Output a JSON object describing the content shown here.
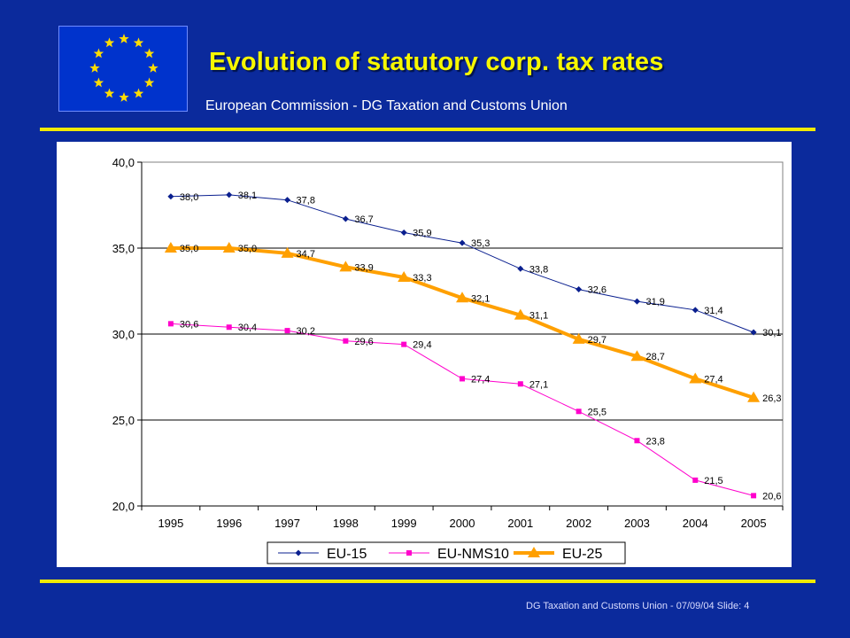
{
  "slide": {
    "title": "Evolution of statutory corp. tax rates",
    "subtitle": "European Commission - DG Taxation and Customs Union",
    "footer": "DG Taxation and Customs Union  - 07/09/04 Slide: 4"
  },
  "colors": {
    "background": "#0b2a9c",
    "title": "#f7f700",
    "rule": "#f2ea00",
    "eu_flag_blue": "#0033cc",
    "eu_flag_stars": "#ffdd00"
  },
  "icons": {
    "logo": "eu-flag-icon"
  },
  "chart_data": {
    "type": "line",
    "title": "",
    "xlabel": "",
    "ylabel": "",
    "categories": [
      "1995",
      "1996",
      "1997",
      "1998",
      "1999",
      "2000",
      "2001",
      "2002",
      "2003",
      "2004",
      "2005"
    ],
    "ylim": [
      20.0,
      40.0
    ],
    "yticks": [
      "40,0",
      "35,0",
      "30,0",
      "25,0",
      "20,0"
    ],
    "grid": "horizontal",
    "legend": "bottom",
    "series": [
      {
        "name": "EU-15",
        "color": "#0a1f8f",
        "marker": "diamond",
        "values": [
          38.0,
          38.1,
          37.8,
          36.7,
          35.9,
          35.3,
          33.8,
          32.6,
          31.9,
          31.4,
          30.1
        ],
        "labels": [
          "38,0",
          "38,1",
          "37,8",
          "36,7",
          "35,9",
          "35,3",
          "33,8",
          "32,6",
          "31,9",
          "31,4",
          "30,1"
        ]
      },
      {
        "name": "EU-NMS10",
        "color": "#ff00cc",
        "marker": "square",
        "values": [
          30.6,
          30.4,
          30.2,
          29.6,
          29.4,
          27.4,
          27.1,
          25.5,
          23.8,
          21.5,
          20.6
        ],
        "labels": [
          "30,6",
          "30,4",
          "30,2",
          "29,6",
          "29,4",
          "27,4",
          "27,1",
          "25,5",
          "23,8",
          "21,5",
          "20,6"
        ]
      },
      {
        "name": "EU-25",
        "color": "#ffa000",
        "marker": "triangle",
        "values": [
          35.0,
          35.0,
          34.7,
          33.9,
          33.3,
          32.1,
          31.1,
          29.7,
          28.7,
          27.4,
          26.3
        ],
        "labels": [
          "35,0",
          "35,0",
          "34,7",
          "33,9",
          "33,3",
          "32,1",
          "31,1",
          "29,7",
          "28,7",
          "27,4",
          "26,3"
        ]
      }
    ]
  }
}
